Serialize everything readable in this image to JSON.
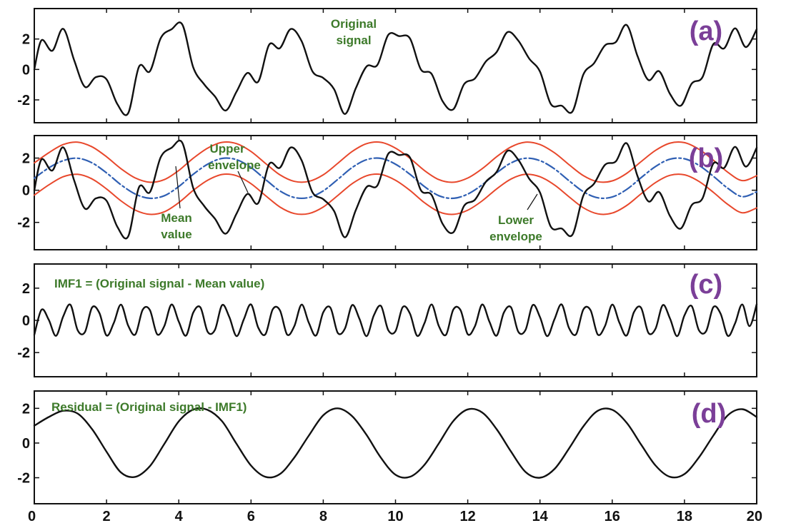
{
  "colors": {
    "signal": "#111111",
    "envelope": "#e8482c",
    "mean": "#2f5fb3",
    "annotation": "#3d7a2a",
    "panel_label": "#7b3f98",
    "frame": "#111111"
  },
  "x_axis": {
    "range": [
      0,
      20
    ],
    "ticks": [
      0,
      2,
      4,
      6,
      8,
      10,
      12,
      14,
      16,
      18,
      20
    ],
    "tick_labels": [
      "0",
      "2",
      "4",
      "6",
      "8",
      "10",
      "12",
      "14",
      "16",
      "18",
      "20"
    ]
  },
  "chart_data": [
    {
      "type": "line",
      "panel_label": "(a)",
      "annotations": [
        {
          "id": "original",
          "lines": [
            "Original",
            "signal"
          ]
        }
      ],
      "ylim": [
        -3.5,
        4
      ],
      "yticks": [
        -2,
        0,
        2
      ],
      "ytick_labels": [
        "-2",
        "0",
        "2"
      ],
      "grid": false,
      "series": [
        {
          "role": "signal",
          "x": [
            0,
            0.2,
            0.5,
            0.8,
            1.1,
            1.4,
            1.7,
            2.0,
            2.3,
            2.6,
            2.9,
            3.2,
            3.5,
            3.8,
            4.1,
            4.4,
            4.7,
            5.0,
            5.3,
            5.6,
            5.9,
            6.2,
            6.5,
            6.8,
            7.1,
            7.4,
            7.7,
            8.0,
            8.3,
            8.6,
            8.9,
            9.2,
            9.5,
            9.8,
            10.1,
            10.4,
            10.7,
            11.0,
            11.3,
            11.6,
            11.9,
            12.2,
            12.5,
            12.8,
            13.1,
            13.4,
            13.7,
            14.0,
            14.3,
            14.6,
            14.9,
            15.2,
            15.5,
            15.8,
            16.1,
            16.4,
            16.7,
            17.0,
            17.3,
            17.6,
            17.9,
            18.2,
            18.5,
            18.8,
            19.1,
            19.4,
            19.7,
            20.0
          ],
          "y": [
            0.0,
            1.92,
            1.23,
            2.67,
            0.63,
            -1.14,
            -0.51,
            -0.65,
            -2.28,
            -2.87,
            0.19,
            -0.12,
            2.05,
            2.64,
            2.94,
            0.14,
            -0.97,
            -1.77,
            -2.7,
            -1.45,
            -0.23,
            -0.8,
            1.62,
            1.4,
            2.66,
            1.86,
            -0.12,
            -0.56,
            -1.3,
            -2.93,
            -1.24,
            0.2,
            0.3,
            2.27,
            2.19,
            2.04,
            0.01,
            -0.3,
            -2.07,
            -2.62,
            -0.97,
            -0.59,
            0.52,
            1.14,
            2.45,
            1.89,
            0.72,
            -0.14,
            -2.27,
            -2.38,
            -2.76,
            -0.33,
            0.42,
            1.58,
            1.8,
            2.92,
            0.88,
            -0.69,
            -0.12,
            -1.61,
            -2.38,
            -0.93,
            -0.5,
            1.66,
            1.39,
            2.7,
            1.47,
            2.64
          ]
        }
      ]
    },
    {
      "type": "line",
      "panel_label": "(b)",
      "annotations": [
        {
          "id": "upper",
          "lines": [
            "Upper",
            "envelope"
          ]
        },
        {
          "id": "mean",
          "lines": [
            "Mean",
            "value"
          ]
        },
        {
          "id": "lower",
          "lines": [
            "Lower",
            "envelope"
          ]
        }
      ],
      "ylim": [
        -3.7,
        3.4
      ],
      "yticks": [
        -2,
        0,
        2
      ],
      "ytick_labels": [
        "-2",
        "0",
        "2"
      ],
      "grid": false,
      "series": [
        {
          "role": "signal",
          "x": [
            0,
            0.2,
            0.5,
            0.8,
            1.1,
            1.4,
            1.7,
            2.0,
            2.3,
            2.6,
            2.9,
            3.2,
            3.5,
            3.8,
            4.1,
            4.4,
            4.7,
            5.0,
            5.3,
            5.6,
            5.9,
            6.2,
            6.5,
            6.8,
            7.1,
            7.4,
            7.7,
            8.0,
            8.3,
            8.6,
            8.9,
            9.2,
            9.5,
            9.8,
            10.1,
            10.4,
            10.7,
            11.0,
            11.3,
            11.6,
            11.9,
            12.2,
            12.5,
            12.8,
            13.1,
            13.4,
            13.7,
            14.0,
            14.3,
            14.6,
            14.9,
            15.2,
            15.5,
            15.8,
            16.1,
            16.4,
            16.7,
            17.0,
            17.3,
            17.6,
            17.9,
            18.2,
            18.5,
            18.8,
            19.1,
            19.4,
            19.7,
            20.0
          ],
          "y": [
            0.0,
            1.92,
            1.23,
            2.67,
            0.63,
            -1.14,
            -0.51,
            -0.65,
            -2.28,
            -2.87,
            0.19,
            -0.12,
            2.05,
            2.64,
            2.94,
            0.14,
            -0.97,
            -1.77,
            -2.7,
            -1.45,
            -0.23,
            -0.8,
            1.62,
            1.4,
            2.66,
            1.86,
            -0.12,
            -0.56,
            -1.3,
            -2.93,
            -1.24,
            0.2,
            0.3,
            2.27,
            2.19,
            2.04,
            0.01,
            -0.3,
            -2.07,
            -2.62,
            -0.97,
            -0.59,
            0.52,
            1.14,
            2.45,
            1.89,
            0.72,
            -0.14,
            -2.27,
            -2.38,
            -2.76,
            -0.33,
            0.42,
            1.58,
            1.8,
            2.92,
            0.88,
            -0.69,
            -0.12,
            -1.61,
            -2.38,
            -0.93,
            -0.5,
            1.66,
            1.39,
            2.7,
            1.47,
            2.64
          ]
        },
        {
          "role": "upper",
          "x": [
            0,
            0.4,
            0.8,
            1.2,
            1.6,
            2.0,
            2.4,
            2.8,
            3.2,
            3.6,
            4.0,
            4.4,
            4.8,
            5.2,
            5.6,
            6.0,
            6.4,
            6.8,
            7.2,
            7.6,
            8.0,
            8.4,
            8.8,
            9.2,
            9.6,
            10.0,
            10.4,
            10.8,
            11.2,
            11.6,
            12.0,
            12.4,
            12.8,
            13.2,
            13.6,
            14.0,
            14.4,
            14.8,
            15.2,
            15.6,
            16.0,
            16.4,
            16.8,
            17.2,
            17.6,
            18.0,
            18.4,
            18.8,
            19.2,
            19.6,
            20.0
          ],
          "y": [
            1.7,
            2.33,
            2.84,
            2.99,
            2.7,
            2.08,
            1.34,
            0.76,
            0.5,
            0.66,
            1.23,
            1.99,
            2.62,
            2.98,
            2.9,
            2.41,
            1.67,
            0.96,
            0.55,
            0.55,
            0.96,
            1.67,
            2.41,
            2.9,
            2.98,
            2.62,
            1.99,
            1.23,
            0.66,
            0.5,
            0.76,
            1.34,
            2.08,
            2.7,
            2.99,
            2.84,
            2.33,
            1.6,
            0.91,
            0.53,
            0.58,
            1.05,
            1.78,
            2.48,
            2.93,
            2.96,
            2.55,
            1.87,
            1.12,
            0.6,
            0.9
          ]
        },
        {
          "role": "mean",
          "x": [
            0,
            0.4,
            0.8,
            1.2,
            1.6,
            2.0,
            2.4,
            2.8,
            3.2,
            3.6,
            4.0,
            4.4,
            4.8,
            5.2,
            5.6,
            6.0,
            6.4,
            6.8,
            7.2,
            7.6,
            8.0,
            8.4,
            8.8,
            9.2,
            9.6,
            10.0,
            10.4,
            10.8,
            11.2,
            11.6,
            12.0,
            12.4,
            12.8,
            13.2,
            13.6,
            14.0,
            14.4,
            14.8,
            15.2,
            15.6,
            16.0,
            16.4,
            16.8,
            17.2,
            17.6,
            18.0,
            18.4,
            18.8,
            19.2,
            19.6,
            20.0
          ],
          "y": [
            0.75,
            1.39,
            1.84,
            1.99,
            1.7,
            1.08,
            0.34,
            -0.24,
            -0.5,
            -0.34,
            0.23,
            0.99,
            1.62,
            1.98,
            1.9,
            1.41,
            0.67,
            -0.04,
            -0.45,
            -0.45,
            -0.04,
            0.67,
            1.41,
            1.9,
            1.98,
            1.62,
            0.99,
            0.23,
            -0.34,
            -0.5,
            -0.24,
            0.34,
            1.08,
            1.7,
            1.99,
            1.84,
            1.33,
            0.6,
            -0.09,
            -0.47,
            -0.42,
            0.05,
            0.78,
            1.48,
            1.93,
            1.96,
            1.55,
            0.87,
            0.12,
            -0.4,
            -0.1
          ]
        },
        {
          "role": "lower",
          "x": [
            0,
            0.4,
            0.8,
            1.2,
            1.6,
            2.0,
            2.4,
            2.8,
            3.2,
            3.6,
            4.0,
            4.4,
            4.8,
            5.2,
            5.6,
            6.0,
            6.4,
            6.8,
            7.2,
            7.6,
            8.0,
            8.4,
            8.8,
            9.2,
            9.6,
            10.0,
            10.4,
            10.8,
            11.2,
            11.6,
            12.0,
            12.4,
            12.8,
            13.2,
            13.6,
            14.0,
            14.4,
            14.8,
            15.2,
            15.6,
            16.0,
            16.4,
            16.8,
            17.2,
            17.6,
            18.0,
            18.4,
            18.8,
            19.2,
            19.6,
            20.0
          ],
          "y": [
            -0.3,
            0.33,
            0.84,
            0.99,
            0.7,
            0.08,
            -0.66,
            -1.24,
            -1.5,
            -1.34,
            -0.77,
            -0.01,
            0.62,
            0.98,
            0.9,
            0.41,
            -0.33,
            -1.04,
            -1.45,
            -1.45,
            -1.04,
            -0.33,
            0.41,
            0.9,
            0.98,
            0.62,
            -0.01,
            -0.77,
            -1.34,
            -1.5,
            -1.24,
            -0.66,
            0.08,
            0.7,
            0.99,
            0.84,
            0.33,
            -0.4,
            -1.09,
            -1.47,
            -1.42,
            -0.95,
            -0.22,
            0.48,
            0.93,
            0.96,
            0.55,
            -0.13,
            -0.88,
            -1.4,
            -1.1
          ]
        }
      ]
    },
    {
      "type": "line",
      "panel_label": "(c)",
      "annotations": [
        {
          "id": "imf",
          "lines": [
            "IMF1 = (Original signal - Mean value)"
          ]
        }
      ],
      "ylim": [
        -3.5,
        3.5
      ],
      "yticks": [
        -2,
        0,
        2
      ],
      "ytick_labels": [
        "-2",
        "0",
        "2"
      ],
      "grid": false,
      "series": [
        {
          "role": "signal",
          "x": [
            0,
            0.2,
            0.4,
            0.6,
            0.8,
            1.0,
            1.2,
            1.4,
            1.6,
            1.8,
            2.0,
            2.2,
            2.4,
            2.6,
            2.8,
            3.0,
            3.2,
            3.4,
            3.6,
            3.8,
            4.0,
            4.2,
            4.4,
            4.6,
            4.8,
            5.0,
            5.2,
            5.4,
            5.6,
            5.8,
            6.0,
            6.2,
            6.4,
            6.6,
            6.8,
            7.0,
            7.2,
            7.4,
            7.6,
            7.8,
            8.0,
            8.2,
            8.4,
            8.6,
            8.8,
            9.0,
            9.2,
            9.4,
            9.6,
            9.8,
            10.0,
            10.2,
            10.4,
            10.6,
            10.8,
            11.0,
            11.2,
            11.4,
            11.6,
            11.8,
            12.0,
            12.2,
            12.4,
            12.6,
            12.8,
            13.0,
            13.2,
            13.4,
            13.6,
            13.8,
            14.0,
            14.2,
            14.4,
            14.6,
            14.8,
            15.0,
            15.2,
            15.4,
            15.6,
            15.8,
            16.0,
            16.2,
            16.4,
            16.6,
            16.8,
            17.0,
            17.2,
            17.4,
            17.6,
            17.8,
            18.0,
            18.2,
            18.4,
            18.6,
            18.8,
            19.0,
            19.2,
            19.4,
            19.6,
            19.8,
            20.0
          ],
          "y": [
            -0.9,
            0.66,
            0.04,
            -0.96,
            0.24,
            0.97,
            -0.61,
            -0.73,
            0.8,
            0.47,
            -0.94,
            -0.17,
            0.98,
            -0.33,
            -0.87,
            0.66,
            0.64,
            -0.86,
            -0.35,
            0.99,
            -0.08,
            -0.95,
            0.48,
            0.8,
            -0.71,
            -0.59,
            0.95,
            0.2,
            -0.98,
            0.06,
            0.99,
            -0.45,
            -0.86,
            0.68,
            0.63,
            -0.88,
            -0.35,
            0.98,
            -0.15,
            -0.94,
            0.5,
            0.78,
            -0.77,
            -0.51,
            0.95,
            0.11,
            -0.98,
            0.31,
            0.89,
            -0.61,
            -0.67,
            0.82,
            0.42,
            -0.96,
            -0.19,
            0.99,
            -0.36,
            -0.89,
            0.67,
            0.64,
            -0.86,
            -0.36,
            0.99,
            -0.08,
            -0.95,
            0.48,
            0.8,
            -0.71,
            -0.59,
            0.95,
            0.2,
            -0.98,
            0.06,
            0.99,
            -0.45,
            -0.86,
            0.68,
            0.63,
            -0.88,
            -0.35,
            0.98,
            -0.15,
            -0.94,
            0.5,
            0.78,
            -0.77,
            -0.51,
            0.95,
            0.11,
            -0.98,
            0.31,
            0.89,
            -0.61,
            -0.67,
            0.82,
            0.42,
            -0.96,
            -0.19,
            0.99,
            -0.36,
            1.0
          ]
        }
      ]
    },
    {
      "type": "line",
      "panel_label": "(d)",
      "annotations": [
        {
          "id": "residual",
          "lines": [
            "Residual = (Original signal - IMF1)"
          ]
        }
      ],
      "ylim": [
        -3.5,
        3.0
      ],
      "yticks": [
        -2,
        0,
        2
      ],
      "ytick_labels": [
        "-2",
        "0",
        "2"
      ],
      "grid": false,
      "series": [
        {
          "role": "signal",
          "x": [
            0,
            0.4,
            0.8,
            1.2,
            1.6,
            2.0,
            2.4,
            2.8,
            3.2,
            3.6,
            4.0,
            4.4,
            4.8,
            5.2,
            5.6,
            6.0,
            6.4,
            6.8,
            7.2,
            7.6,
            8.0,
            8.4,
            8.8,
            9.2,
            9.6,
            10.0,
            10.4,
            10.8,
            11.2,
            11.6,
            12.0,
            12.4,
            12.8,
            13.2,
            13.6,
            14.0,
            14.4,
            14.8,
            15.2,
            15.6,
            16.0,
            16.4,
            16.8,
            17.2,
            17.6,
            18.0,
            18.4,
            18.8,
            19.2,
            19.6,
            20.0
          ],
          "y": [
            1.0,
            1.5,
            1.86,
            1.7,
            0.8,
            -0.5,
            -1.7,
            -1.95,
            -1.33,
            -0.05,
            1.25,
            1.93,
            1.91,
            1.25,
            -0.05,
            -1.3,
            -1.95,
            -1.79,
            -0.83,
            0.43,
            1.6,
            2.0,
            1.55,
            0.46,
            -0.86,
            -1.83,
            -1.95,
            -1.26,
            -0.02,
            1.27,
            1.94,
            1.76,
            0.8,
            -0.5,
            -1.67,
            -2.0,
            -1.5,
            -0.33,
            0.96,
            1.86,
            1.92,
            1.17,
            -0.09,
            -1.3,
            -1.95,
            -1.79,
            -0.83,
            0.43,
            1.6,
            1.95,
            1.5
          ]
        }
      ]
    }
  ]
}
